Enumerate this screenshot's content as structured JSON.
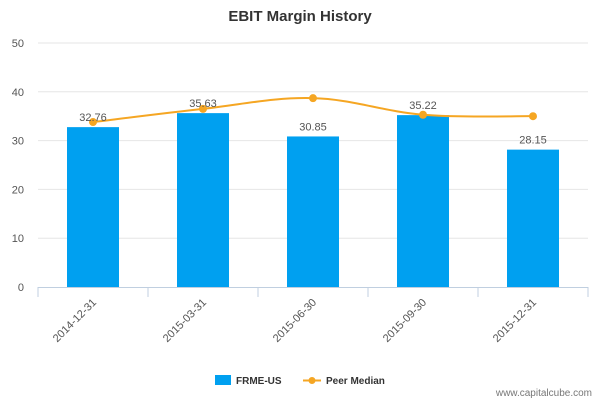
{
  "chart_data": {
    "type": "bar",
    "title": "EBIT Margin History",
    "categories": [
      "2014-12-31",
      "2015-03-31",
      "2015-06-30",
      "2015-09-30",
      "2015-12-31"
    ],
    "series": [
      {
        "name": "FRME-US",
        "type": "bar",
        "values": [
          32.76,
          35.63,
          30.85,
          35.22,
          28.15
        ],
        "color": "#00a0f0"
      },
      {
        "name": "Peer Median",
        "type": "line",
        "values": [
          33.8,
          36.5,
          38.7,
          35.3,
          35.0
        ],
        "color": "#f5a623"
      }
    ],
    "data_labels": [
      "32.76",
      "35.63",
      "30.85",
      "35.22",
      "28.15"
    ],
    "ylim": [
      0,
      50
    ],
    "yticks": [
      "0",
      "10",
      "20",
      "30",
      "40",
      "50"
    ],
    "grid": true,
    "legend_position": "bottom"
  },
  "watermark": "www.capitalcube.com",
  "colors": {
    "grid": "#e6e6e6",
    "axis": "#c0cfe0"
  }
}
